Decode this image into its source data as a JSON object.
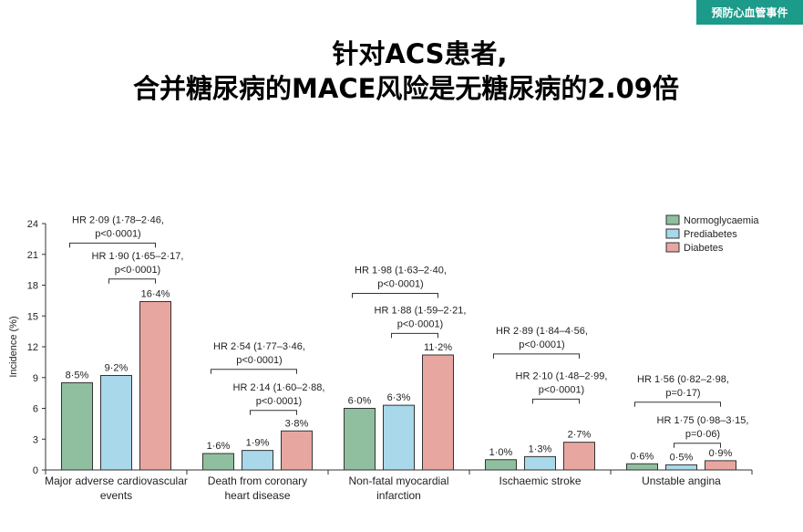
{
  "badge": {
    "label": "预防心血管事件"
  },
  "title": {
    "line1": "针对ACS患者,",
    "line2": "合并糖尿病的MACE风险是无糖尿病的2.09倍"
  },
  "chart_data": {
    "type": "bar",
    "ylabel": "Incidence (%)",
    "ylim": [
      0,
      24
    ],
    "yticks": [
      "0",
      "3",
      "6",
      "9",
      "12",
      "15",
      "18",
      "21",
      "24"
    ],
    "categories": [
      [
        "Major adverse cardiovascular",
        "events"
      ],
      [
        "Death from coronary",
        "heart disease"
      ],
      [
        "Non-fatal myocardial",
        "infarction"
      ],
      [
        "Ischaemic stroke"
      ],
      [
        "Unstable angina"
      ]
    ],
    "series": [
      {
        "name": "Normoglycaemia",
        "color": "#8fbf9f",
        "values": [
          8.5,
          1.6,
          6.0,
          1.0,
          0.6
        ],
        "labels": [
          "8·5%",
          "1·6%",
          "6·0%",
          "1·0%",
          "0·6%"
        ]
      },
      {
        "name": "Prediabetes",
        "color": "#a8d8ea",
        "values": [
          9.2,
          1.9,
          6.3,
          1.3,
          0.5
        ],
        "labels": [
          "9·2%",
          "1·9%",
          "6·3%",
          "1·3%",
          "0·5%"
        ]
      },
      {
        "name": "Diabetes",
        "color": "#e8a6a1",
        "values": [
          16.4,
          3.8,
          11.2,
          2.7,
          0.9
        ],
        "labels": [
          "16·4%",
          "3·8%",
          "11·2%",
          "2·7%",
          "0·9%"
        ]
      }
    ],
    "legend_position": "top-right",
    "annotations": [
      {
        "group": 0,
        "from": 0,
        "to": 2,
        "level": 22.1,
        "text": [
          "HR 2·09 (1·78–2·46,",
          "p<0·0001)"
        ]
      },
      {
        "group": 0,
        "from": 1,
        "to": 2,
        "level": 18.6,
        "text": [
          "HR 1·90 (1·65–2·17,",
          "p<0·0001)"
        ]
      },
      {
        "group": 1,
        "from": 0,
        "to": 2,
        "level": 9.8,
        "text": [
          "HR 2·54 (1·77–3·46,",
          "p<0·0001)"
        ]
      },
      {
        "group": 1,
        "from": 1,
        "to": 2,
        "level": 5.8,
        "text": [
          "HR 2·14 (1·60–2·88,",
          "p<0·0001)"
        ]
      },
      {
        "group": 2,
        "from": 0,
        "to": 2,
        "level": 17.2,
        "text": [
          "HR 1·98 (1·63–2·40,",
          "p<0·0001)"
        ]
      },
      {
        "group": 2,
        "from": 1,
        "to": 2,
        "level": 13.3,
        "text": [
          "HR 1·88 (1·59–2·21,",
          "p<0·0001)"
        ]
      },
      {
        "group": 3,
        "from": 0,
        "to": 2,
        "level": 11.3,
        "text": [
          "HR 2·89 (1·84–4·56,",
          "p<0·0001)"
        ]
      },
      {
        "group": 3,
        "from": 1,
        "to": 2,
        "level": 6.9,
        "text": [
          "HR 2·10 (1·48–2·99,",
          "p<0·0001)"
        ]
      },
      {
        "group": 4,
        "from": 0,
        "to": 2,
        "level": 6.6,
        "text": [
          "HR 1·56 (0·82–2·98,",
          "p=0·17)"
        ]
      },
      {
        "group": 4,
        "from": 1,
        "to": 2,
        "level": 2.6,
        "text": [
          "HR 1·75 (0·98–3·15,",
          "p=0·06)"
        ]
      }
    ]
  }
}
